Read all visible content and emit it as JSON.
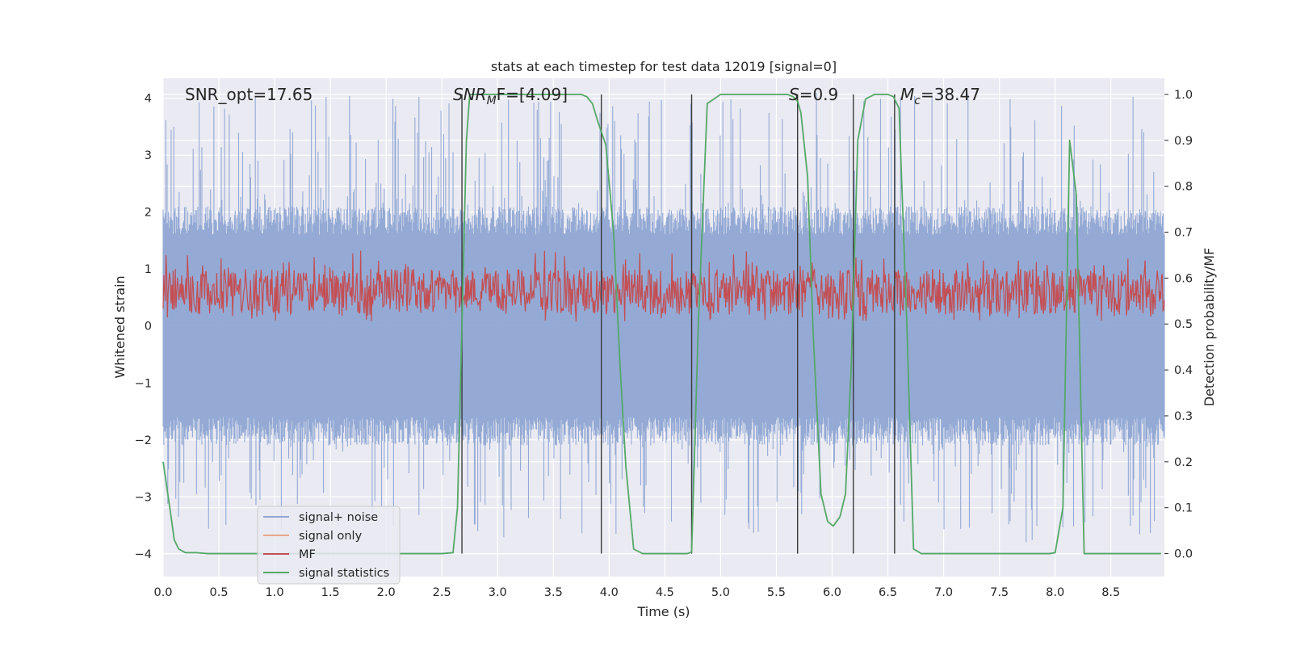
{
  "chart_data": {
    "type": "line",
    "title": "stats at each timestep for test data 12019 [signal=0]",
    "xlabel": "Time (s)",
    "ylabel_left": "Whitened strain",
    "ylabel_right": "Detection probability/MF",
    "xlim": [
      0.0,
      8.98
    ],
    "ylim_left": [
      -4.4,
      4.35
    ],
    "ylim_right": [
      -0.05,
      1.035
    ],
    "xticks": [
      "0.0",
      "0.5",
      "1.0",
      "1.5",
      "2.0",
      "2.5",
      "3.0",
      "3.5",
      "4.0",
      "4.5",
      "5.0",
      "5.5",
      "6.0",
      "6.5",
      "7.0",
      "7.5",
      "8.0",
      "8.5"
    ],
    "yticks_left": [
      "−4",
      "−3",
      "−2",
      "−1",
      "0",
      "1",
      "2",
      "3",
      "4"
    ],
    "yticks_right": [
      "0.0",
      "0.1",
      "0.2",
      "0.3",
      "0.4",
      "0.5",
      "0.6",
      "0.7",
      "0.8",
      "0.9",
      "1.0"
    ],
    "grid": true,
    "legend_position": "lower-left",
    "annotations": {
      "snr_opt": "SNR_opt=17.65",
      "snr_mf_main": "SNR",
      "snr_mf_sub": "M",
      "snr_mf_rest": "F=[4.09]",
      "s_italic": "S",
      "s_rest": "=0.9",
      "mc_main": "M",
      "mc_sub": "c",
      "mc_rest": "=38.47"
    },
    "vertical_lines_x": [
      2.68,
      3.93,
      4.74,
      5.69,
      6.19,
      6.56
    ],
    "series": [
      {
        "name": "signal+ noise",
        "color": "#8fa7d3",
        "axis": "left",
        "envelope": {
          "upper_typical": 1.6,
          "upper_peak": 3.9,
          "lower_typical": -1.6,
          "lower_peak": -3.6
        }
      },
      {
        "name": "signal only",
        "color": "#eaa58a",
        "axis": "left",
        "values": []
      },
      {
        "name": "MF",
        "color": "#c44e52",
        "axis": "right",
        "band": [
          0.52,
          0.62
        ]
      },
      {
        "name": "signal statistics",
        "color": "#55a868",
        "axis": "right",
        "x": [
          0.0,
          0.06,
          0.1,
          0.14,
          0.2,
          0.3,
          0.4,
          0.5,
          1.0,
          1.5,
          2.0,
          2.5,
          2.6,
          2.64,
          2.68,
          2.72,
          2.75,
          3.0,
          3.5,
          3.65,
          3.75,
          3.8,
          3.85,
          3.9,
          3.97,
          4.04,
          4.1,
          4.15,
          4.22,
          4.3,
          4.5,
          4.7,
          4.74,
          4.8,
          4.88,
          5.0,
          5.5,
          5.6,
          5.65,
          5.69,
          5.72,
          5.78,
          5.83,
          5.9,
          5.96,
          6.01,
          6.07,
          6.12,
          6.17,
          6.23,
          6.3,
          6.38,
          6.45,
          6.5,
          6.55,
          6.6,
          6.67,
          6.73,
          6.8,
          7.0,
          7.5,
          7.95,
          8.0,
          8.07,
          8.13,
          8.19,
          8.26,
          8.35,
          8.5,
          8.95
        ],
        "y": [
          0.2,
          0.1,
          0.03,
          0.01,
          0.002,
          0.002,
          0.0,
          0.0,
          0.0,
          0.0,
          0.0,
          0.0,
          0.002,
          0.1,
          0.5,
          0.9,
          1.0,
          1.0,
          1.0,
          1.0,
          1.0,
          0.995,
          0.98,
          0.94,
          0.89,
          0.7,
          0.4,
          0.19,
          0.01,
          0.0,
          0.0,
          0.0,
          0.003,
          0.5,
          0.98,
          1.0,
          1.0,
          1.0,
          0.995,
          0.985,
          0.96,
          0.82,
          0.48,
          0.13,
          0.07,
          0.06,
          0.08,
          0.13,
          0.4,
          0.9,
          0.99,
          1.0,
          1.0,
          1.0,
          0.995,
          0.97,
          0.5,
          0.01,
          0.0,
          0.0,
          0.0,
          0.0,
          0.002,
          0.1,
          0.9,
          0.78,
          0.0,
          0.0,
          0.0,
          0.0
        ]
      }
    ]
  }
}
